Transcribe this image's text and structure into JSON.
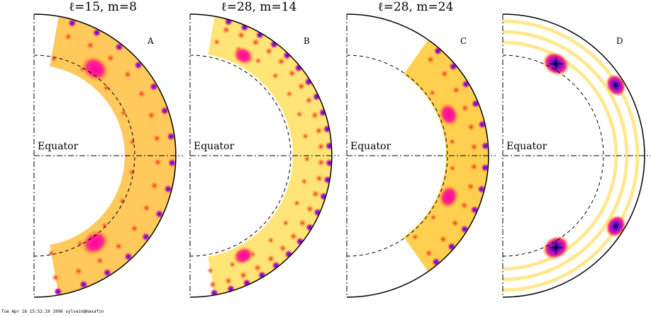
{
  "panels": [
    {
      "title": "ℓ=15, m=8",
      "label": "A",
      "equator": "Equator"
    },
    {
      "title": "ℓ=28, m=14",
      "label": "B",
      "equator": "Equator"
    },
    {
      "title": "ℓ=28, m=24",
      "label": "C",
      "equator": "Equator"
    },
    {
      "label": "D",
      "equator": "Equator"
    }
  ],
  "footer": "Tue Apr 16 15:52:19 1996 sylvain@maxafin"
}
